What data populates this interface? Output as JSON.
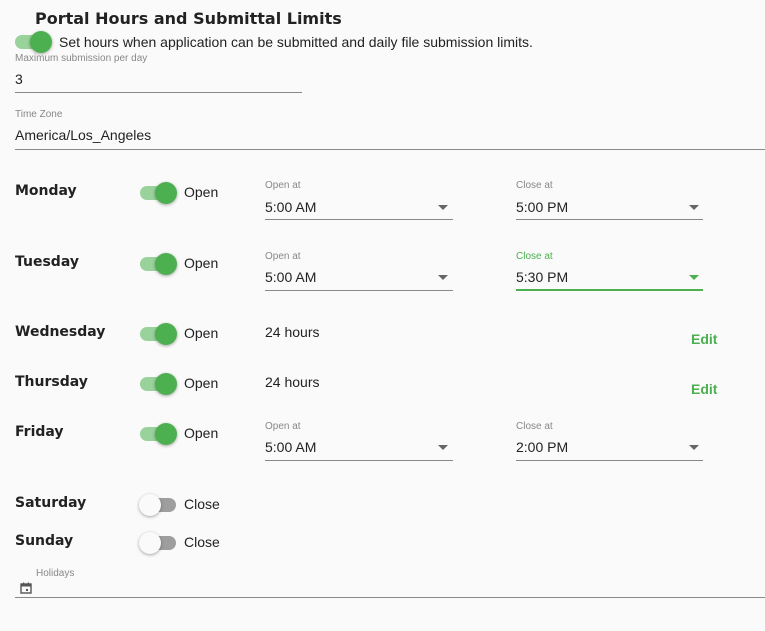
{
  "title": "Portal Hours and Submittal Limits",
  "enable_toggle": {
    "on": true,
    "label": "Set hours when application can be submitted and daily file submission limits."
  },
  "max_submission": {
    "label": "Maximum submission per day",
    "value": "3"
  },
  "time_zone": {
    "label": "Time Zone",
    "value": "America/Los_Angeles"
  },
  "open_at_label": "Open at",
  "close_at_label": "Close at",
  "edit_label": "Edit",
  "days": [
    {
      "name": "Monday",
      "state": "Open",
      "open": "5:00 AM",
      "close": "5:00 PM"
    },
    {
      "name": "Tuesday",
      "state": "Open",
      "open": "5:00 AM",
      "close": "5:30 PM",
      "focused": "close"
    },
    {
      "name": "Wednesday",
      "state": "Open",
      "hours": "24 hours"
    },
    {
      "name": "Thursday",
      "state": "Open",
      "hours": "24 hours"
    },
    {
      "name": "Friday",
      "state": "Open",
      "open": "5:00 AM",
      "close": "2:00 PM"
    },
    {
      "name": "Saturday",
      "state": "Close"
    },
    {
      "name": "Sunday",
      "state": "Close"
    }
  ],
  "holidays": {
    "label": "Holidays",
    "icon": "calendar-icon"
  },
  "colors": {
    "accent": "#4caf50"
  }
}
